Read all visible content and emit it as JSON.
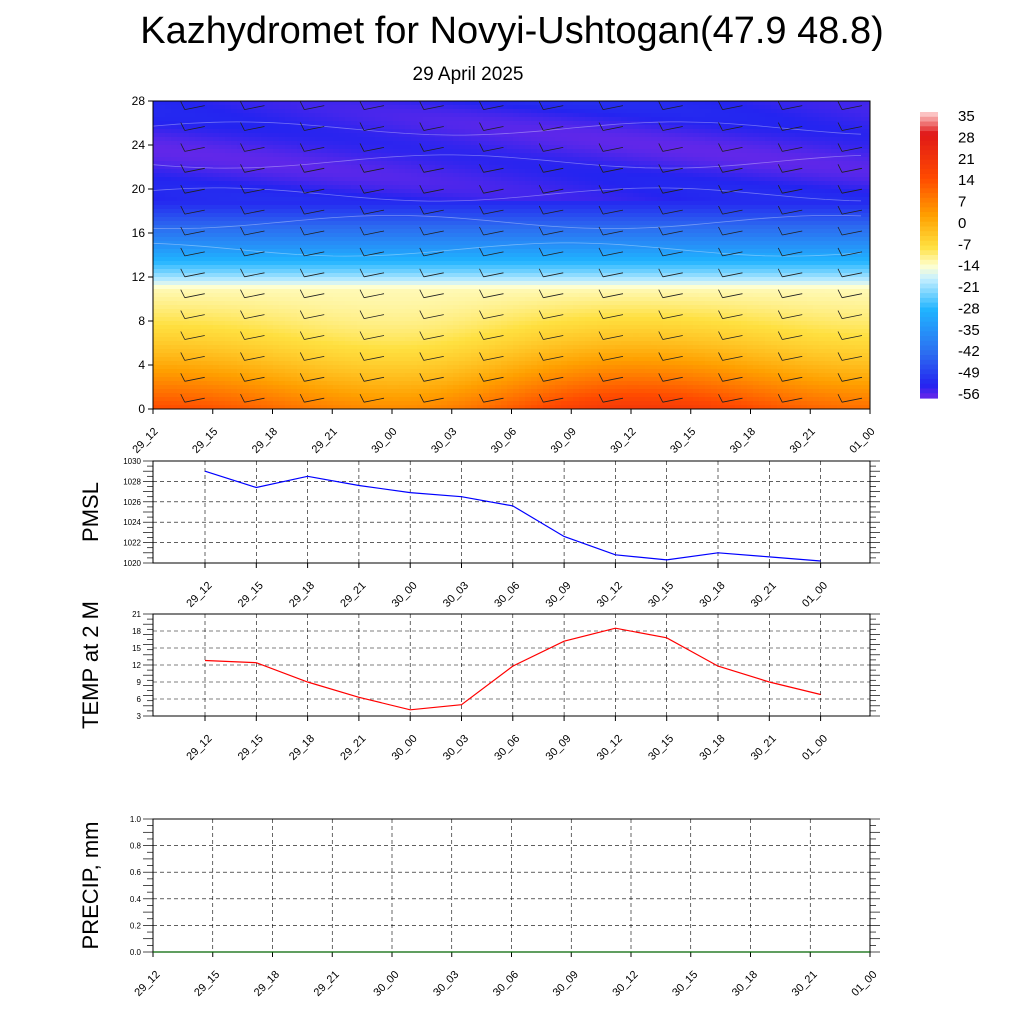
{
  "page": {
    "title": "Kazhydromet for Novyi-Ushtogan(47.9 48.8)",
    "subtitle": "29 April 2025"
  },
  "colors": {
    "pmsl_line": "#0000ff",
    "temp_line": "#ff0000",
    "precip_line": "#006400",
    "grid": "#000000"
  },
  "chart_data": [
    {
      "id": "cross-section",
      "type": "heatmap",
      "title": "",
      "xlabel": "",
      "ylabel": "",
      "x_ticks": [
        "29_12",
        "29_15",
        "29_18",
        "29_21",
        "30_00",
        "30_03",
        "30_06",
        "30_09",
        "30_12",
        "30_15",
        "30_18",
        "30_21",
        "01_00"
      ],
      "y_ticks": [
        0,
        4,
        8,
        12,
        16,
        20,
        24,
        28
      ],
      "ylim": [
        0,
        28
      ],
      "value_range": [
        -56,
        35
      ],
      "colorbar_labels": [
        "35",
        "28",
        "21",
        "14",
        "7",
        "0",
        "-7",
        "-14",
        "-21",
        "-28",
        "-35",
        "-42",
        "-49",
        "-56"
      ],
      "color_stops": [
        {
          "value": 35,
          "color": "#ffd8d8"
        },
        {
          "value": 28,
          "color": "#e01818"
        },
        {
          "value": 14,
          "color": "#ff4a00"
        },
        {
          "value": 2,
          "color": "#ffa000"
        },
        {
          "value": -8,
          "color": "#ffe040"
        },
        {
          "value": -14,
          "color": "#ffffd0"
        },
        {
          "value": -18,
          "color": "#c8f0ff"
        },
        {
          "value": -28,
          "color": "#20b4ff"
        },
        {
          "value": -42,
          "color": "#2c6cf0"
        },
        {
          "value": -52,
          "color": "#2424f0"
        },
        {
          "value": -56,
          "color": "#6a28e8"
        }
      ],
      "surface_temp_profile": [
        {
          "x": "29_12",
          "t": 14
        },
        {
          "x": "30_00",
          "t": 5
        },
        {
          "x": "30_12",
          "t": 19
        },
        {
          "x": "01_00",
          "t": 9
        }
      ],
      "wind_barbs": true
    },
    {
      "id": "pmsl",
      "type": "line",
      "ylabel": "PMSL",
      "x": [
        "29_12",
        "29_15",
        "29_18",
        "29_21",
        "30_00",
        "30_03",
        "30_06",
        "30_09",
        "30_12",
        "30_15",
        "30_18",
        "30_21",
        "01_00"
      ],
      "series": [
        {
          "values": [
            1029.0,
            1027.4,
            1028.5,
            1027.6,
            1026.9,
            1026.5,
            1025.6,
            1022.6,
            1020.8,
            1020.3,
            1021.0,
            1020.6,
            1020.2
          ]
        }
      ],
      "ylim": [
        1020,
        1030
      ],
      "y_ticks": [
        1020,
        1022,
        1024,
        1026,
        1028,
        1030
      ],
      "grid": true
    },
    {
      "id": "temp2m",
      "type": "line",
      "ylabel": "TEMP at 2 M",
      "x": [
        "29_12",
        "29_15",
        "29_18",
        "29_21",
        "30_00",
        "30_03",
        "30_06",
        "30_09",
        "30_12",
        "30_15",
        "30_18",
        "30_21",
        "01_00"
      ],
      "series": [
        {
          "values": [
            12.8,
            12.4,
            9.0,
            6.3,
            4.1,
            5.0,
            11.8,
            16.2,
            18.5,
            16.8,
            11.8,
            9.0,
            6.8
          ]
        }
      ],
      "ylim": [
        3,
        21
      ],
      "y_ticks": [
        3,
        6,
        9,
        12,
        15,
        18,
        21
      ],
      "grid": true
    },
    {
      "id": "precip",
      "type": "line",
      "ylabel": "PRECIP, mm",
      "x": [
        "29_12",
        "29_15",
        "29_18",
        "29_21",
        "30_00",
        "30_03",
        "30_06",
        "30_09",
        "30_12",
        "30_15",
        "30_18",
        "30_21",
        "01_00"
      ],
      "series": [
        {
          "values": [
            0,
            0,
            0,
            0,
            0,
            0,
            0,
            0,
            0,
            0,
            0,
            0,
            0
          ]
        }
      ],
      "ylim": [
        0,
        1
      ],
      "y_ticks": [
        "0.0",
        "0.2",
        "0.4",
        "0.6",
        "0.8",
        "1.0"
      ],
      "grid": true
    }
  ]
}
